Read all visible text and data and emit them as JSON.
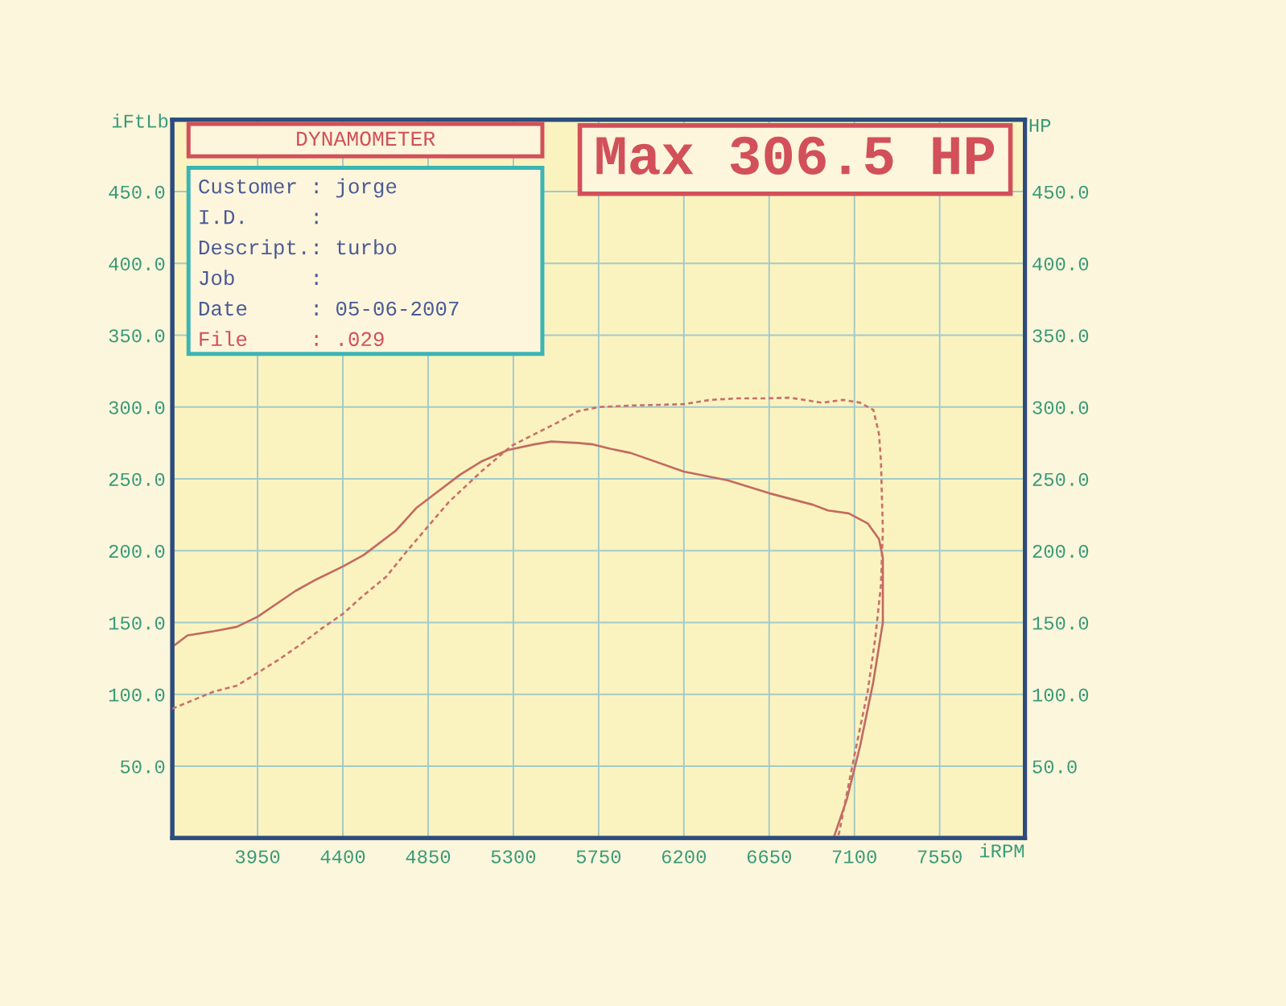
{
  "chart_data": {
    "type": "line",
    "title": "DYNAMOMETER",
    "subtitle": "Max 306.5 HP",
    "xlabel": "iRPM",
    "ylabel": "iFtLb",
    "y2label": "HP",
    "annotations": [
      "Customer : jorge",
      "I.D.     :",
      "Descript.: turbo",
      "Job      :",
      "Date     : 05-06-2007",
      "File     : .029"
    ],
    "xlim": [
      3500,
      8000
    ],
    "xticks": [
      3950,
      4400,
      4850,
      5300,
      5750,
      6200,
      6650,
      7100,
      7550
    ],
    "ylim": [
      0,
      500
    ],
    "yticks": [
      {
        "value": 50,
        "label": "50.0"
      },
      {
        "value": 100,
        "label": "100.0"
      },
      {
        "value": 150,
        "label": "150.0"
      },
      {
        "value": 200,
        "label": "200.0"
      },
      {
        "value": 250,
        "label": "250.0"
      },
      {
        "value": 300,
        "label": "300.0"
      },
      {
        "value": 350,
        "label": "350.0"
      },
      {
        "value": 400,
        "label": "400.0"
      },
      {
        "value": 450,
        "label": "450.0"
      }
    ],
    "y2lim": [
      0,
      500
    ],
    "y2ticks": [
      {
        "value": 50,
        "label": "50.0"
      },
      {
        "value": 100,
        "label": "100.0"
      },
      {
        "value": 150,
        "label": "150.0"
      },
      {
        "value": 200,
        "label": "200.0"
      },
      {
        "value": 250,
        "label": "250.0"
      },
      {
        "value": 300,
        "label": "300.0"
      },
      {
        "value": 350,
        "label": "350.0"
      },
      {
        "value": 400,
        "label": "400.0"
      },
      {
        "value": 450,
        "label": "450.0"
      }
    ],
    "grid": true,
    "series": [
      {
        "color": "#c26a62",
        "axis": "y",
        "line_style": "solid",
        "x": [
          3500,
          3580,
          3720,
          3840,
          3950,
          4150,
          4260,
          4400,
          4510,
          4680,
          4790,
          4850,
          5020,
          5130,
          5270,
          5410,
          5500,
          5640,
          5720,
          5810,
          5920,
          6200,
          6430,
          6650,
          6880,
          6960,
          7070,
          7170,
          7230,
          7250,
          7250,
          7200,
          7130,
          7060,
          6990
        ],
        "values": [
          133,
          141,
          144,
          147,
          154,
          172,
          180,
          189,
          197,
          214,
          230,
          236,
          253,
          262,
          270,
          274,
          276,
          275,
          274,
          271,
          268,
          255,
          249,
          240,
          232,
          228,
          226,
          219,
          208,
          195,
          150,
          109,
          64,
          27,
          0
        ]
      },
      {
        "color": "#c8706c",
        "axis": "y2",
        "line_style": "dashed",
        "x": [
          3500,
          3610,
          3720,
          3840,
          3950,
          4060,
          4180,
          4290,
          4400,
          4510,
          4630,
          4740,
          4850,
          4960,
          5130,
          5290,
          5410,
          5530,
          5640,
          5750,
          5920,
          6200,
          6340,
          6480,
          6620,
          6760,
          6930,
          7040,
          7130,
          7200,
          7230,
          7240,
          7250,
          7240,
          7210,
          7170,
          7110,
          7060,
          7020,
          7010
        ],
        "values": [
          90,
          96,
          102,
          106,
          115,
          124,
          135,
          146,
          156,
          169,
          182,
          200,
          217,
          234,
          255,
          273,
          281,
          289,
          297,
          300,
          301,
          302,
          305,
          306,
          306,
          306.5,
          303,
          305,
          303,
          298,
          281,
          262,
          214,
          176,
          139,
          102,
          64,
          31,
          4,
          0
        ]
      }
    ]
  }
}
